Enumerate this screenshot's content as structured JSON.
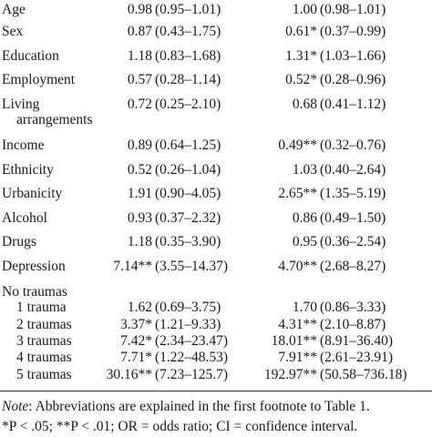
{
  "rows": [
    {
      "label": "Age",
      "or1": "0.98",
      "ci1": "(0.95–1.01)",
      "or2": "1.00",
      "ci2": "(0.98–1.01)"
    },
    {
      "label": "Sex",
      "or1": "0.87",
      "ci1": "(0.43–1.75)",
      "or2": "0.61*",
      "ci2": "(0.37–0.99)"
    },
    {
      "label": "Education",
      "or1": "1.18",
      "ci1": "(0.83–1.68)",
      "or2": "1.31*",
      "ci2": "(1.03–1.66)"
    },
    {
      "label": "Employment",
      "or1": "0.57",
      "ci1": "(0.28–1.14)",
      "or2": "0.52*",
      "ci2": "(0.28–0.96)"
    },
    {
      "label": "Living",
      "label2": "arrangements",
      "or1": "0.72",
      "ci1": "(0.25–2.10)",
      "or2": "0.68",
      "ci2": "(0.41–1.12)"
    },
    {
      "label": "Income",
      "or1": "0.89",
      "ci1": "(0.64–1.25)",
      "or2": "0.49**",
      "ci2": "(0.32–0.76)"
    },
    {
      "label": "Ethnicity",
      "or1": "0.52",
      "ci1": "(0.26–1.04)",
      "or2": "1.03",
      "ci2": "(0.40–2.64)"
    },
    {
      "label": "Urbanicity",
      "or1": "1.91",
      "ci1": "(0.90–4.05)",
      "or2": "2.65**",
      "ci2": "(1.35–5.19)"
    },
    {
      "label": "Alcohol",
      "or1": "0.93",
      "ci1": "(0.37–2.32)",
      "or2": "0.86",
      "ci2": "(0.49–1.50)"
    },
    {
      "label": "Drugs",
      "or1": "1.18",
      "ci1": "(0.35–3.90)",
      "or2": "0.95",
      "ci2": "(0.36–2.54)"
    },
    {
      "label": "Depression",
      "or1": "7.14**",
      "ci1": "(3.55–14.37)",
      "or2": "4.70**",
      "ci2": "(2.68–8.27)"
    },
    {
      "label": "No traumas",
      "or1": "",
      "ci1": "",
      "or2": "",
      "ci2": ""
    },
    {
      "label": "1 trauma",
      "or1": "1.62",
      "ci1": "(0.69–3.75)",
      "or2": "1.70",
      "ci2": "(0.86–3.33)"
    },
    {
      "label": "2 traumas",
      "or1": "3.37*",
      "ci1": "(1.21–9.33)",
      "or2": "4.31**",
      "ci2": "(2.10–8.87)"
    },
    {
      "label": "3 traumas",
      "or1": "7.42*",
      "ci1": "(2.34–23.47)",
      "or2": "18.01**",
      "ci2": "(8.91–36.40)"
    },
    {
      "label": "4 traumas",
      "or1": "7.71*",
      "ci1": "(1.22–48.53)",
      "or2": "7.91**",
      "ci2": "(2.61–23.91)"
    },
    {
      "label": "5 traumas",
      "or1": "30.16**",
      "ci1": "(7.23–125.7)",
      "or2": "192.97**",
      "ci2": "(50.58–736.18)"
    }
  ],
  "note": {
    "label": "Note",
    "text": ": Abbreviations are explained in the first footnote to Table 1.",
    "cut_text": "*P < .05; **P < .01; OR = odds ratio; CI = confidence interval."
  }
}
